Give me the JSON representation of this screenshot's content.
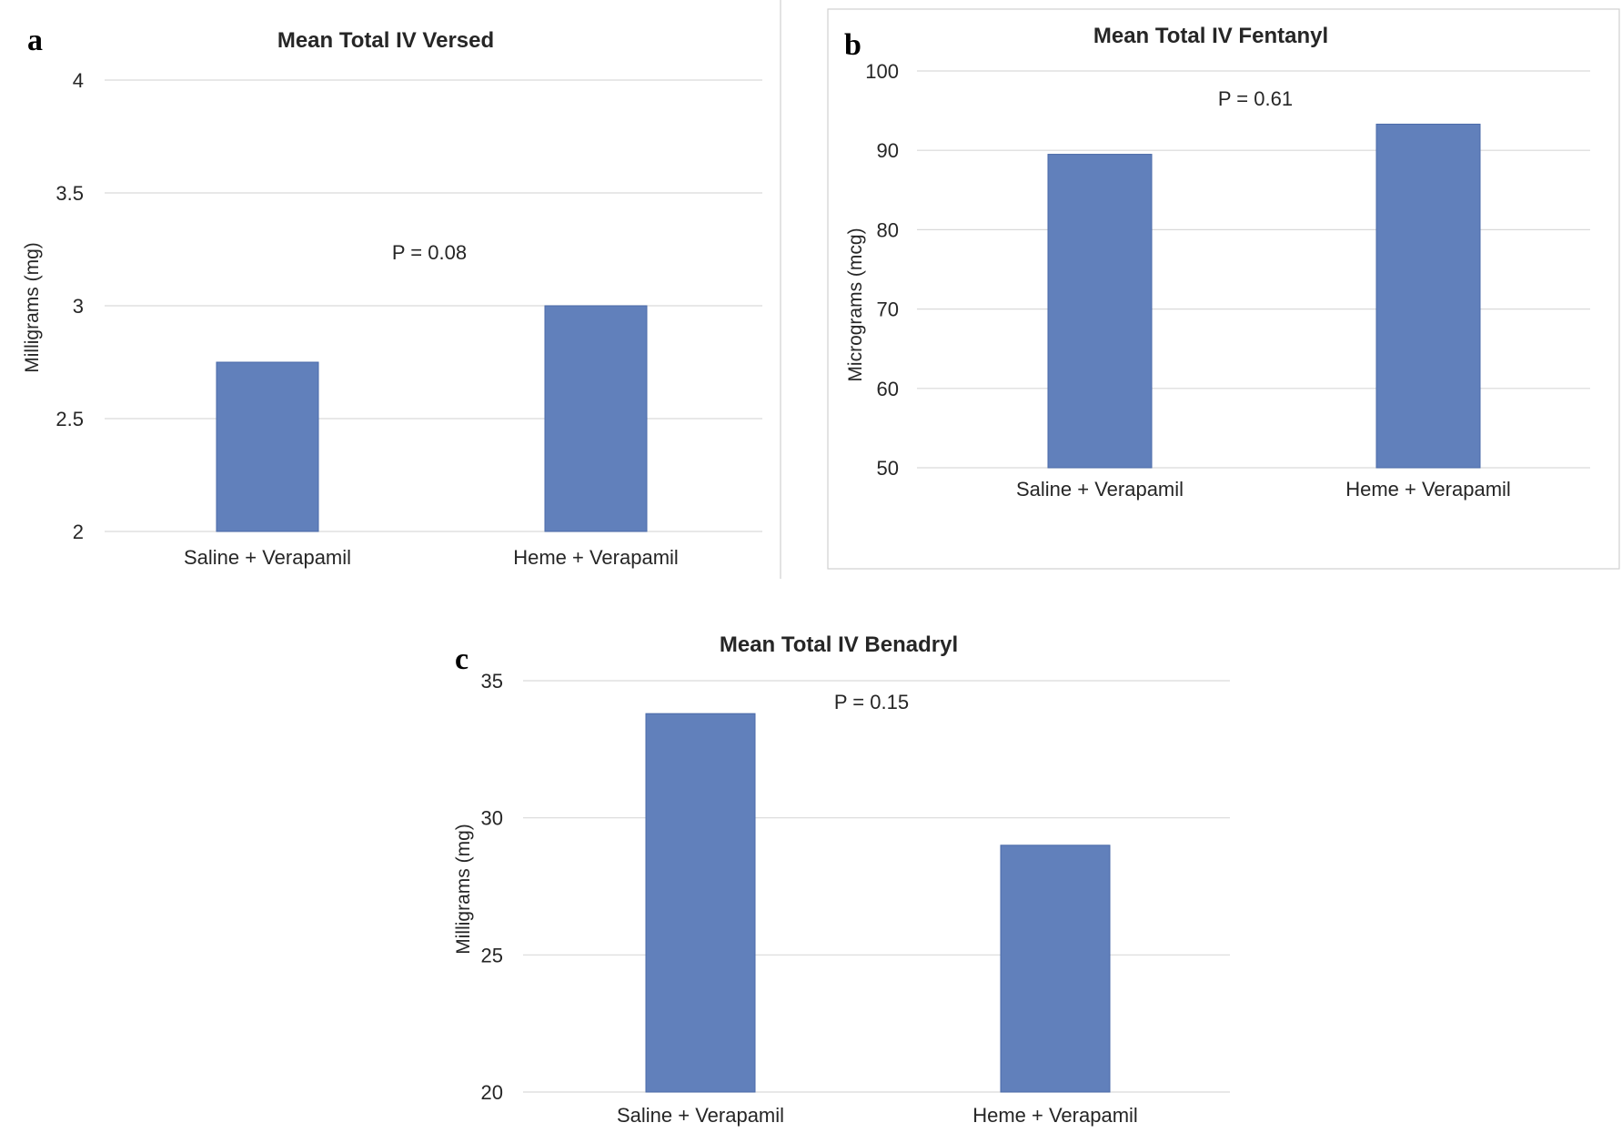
{
  "chart_data": [
    {
      "panel": "a",
      "type": "bar",
      "title": "Mean Total IV Versed",
      "ylabel": "Milligrams (mg)",
      "xlabel": "",
      "categories": [
        "Saline + Verapamil",
        "Heme + Verapamil"
      ],
      "values": [
        2.75,
        3.0
      ],
      "ylim": [
        2,
        4
      ],
      "yticks": [
        "2",
        "2.5",
        "3",
        "3.5",
        "4"
      ],
      "annotation": "P = 0.08",
      "grid": true,
      "bar_color": "#6180bb"
    },
    {
      "panel": "b",
      "type": "bar",
      "title": "Mean Total IV Fentanyl",
      "ylabel": "Micrograms (mcg)",
      "xlabel": "",
      "categories": [
        "Saline + Verapamil",
        "Heme + Verapamil"
      ],
      "values": [
        89.5,
        93.3
      ],
      "ylim": [
        50,
        100
      ],
      "yticks": [
        "50",
        "60",
        "70",
        "80",
        "90",
        "100"
      ],
      "annotation": "P = 0.61",
      "grid": true,
      "bar_color": "#6180bb"
    },
    {
      "panel": "c",
      "type": "bar",
      "title": "Mean Total IV Benadryl",
      "ylabel": "Milligrams (mg)",
      "xlabel": "",
      "categories": [
        "Saline + Verapamil",
        "Heme + Verapamil"
      ],
      "values": [
        33.8,
        29.0
      ],
      "ylim": [
        20,
        35
      ],
      "yticks": [
        "20",
        "25",
        "30",
        "35"
      ],
      "annotation": "P = 0.15",
      "grid": true,
      "bar_color": "#6180bb"
    }
  ]
}
